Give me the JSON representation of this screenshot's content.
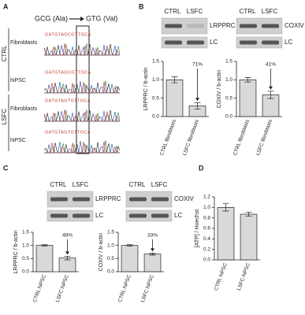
{
  "panels": {
    "A": {
      "label": "A",
      "mutation_from": "GCG (Ala)",
      "mutation_to": "GTG (Val)",
      "groups": [
        {
          "name": "CTRL",
          "rows": [
            {
              "sample": "Fibroblasts",
              "sequence": "GATGTAGCGTTGCA"
            },
            {
              "sample": "hiPSC",
              "sequence": "GATGTAGCGTTGCA"
            }
          ]
        },
        {
          "name": "LSFC",
          "rows": [
            {
              "sample": "Fibroblasts",
              "sequence": "GATGTAGTGTTGCA"
            },
            {
              "sample": "hiPSC",
              "sequence": "GATGTAGTGTTGCA"
            }
          ]
        }
      ]
    },
    "B": {
      "label": "B",
      "blots": [
        {
          "lanes": [
            "CTRL",
            "LSFC"
          ],
          "bands": [
            "LRPPRC",
            "LC"
          ]
        },
        {
          "lanes": [
            "CTRL",
            "LSFC"
          ],
          "bands": [
            "COXIV",
            "LC"
          ]
        }
      ]
    },
    "C": {
      "label": "C",
      "blots": [
        {
          "lanes": [
            "CTRL",
            "LSFC"
          ],
          "bands": [
            "LRPPRC",
            "LC"
          ]
        },
        {
          "lanes": [
            "CTRL",
            "LSFC"
          ],
          "bands": [
            "COXIV",
            "LC"
          ]
        }
      ]
    },
    "D": {
      "label": "D"
    }
  },
  "chart_data": [
    {
      "type": "bar",
      "ylabel": "LRPPRC / b-actin",
      "categories": [
        "CTRL fibroblasts",
        "LSFC fibroblasts"
      ],
      "values": [
        1.0,
        0.29
      ],
      "errors": [
        0.08,
        0.09
      ],
      "color": "#d9d9d9",
      "annotation": "71%",
      "ylim": [
        0,
        1.5
      ],
      "yticks": [
        {
          "value": 0,
          "label": "0.0"
        },
        0.5,
        {
          "value": 1,
          "label": "1.0"
        },
        1.5
      ]
    },
    {
      "type": "bar",
      "ylabel": "COXIV / b-actin",
      "categories": [
        "CTRL fibroblasts",
        "LSFC fibroblasts"
      ],
      "values": [
        1.0,
        0.59
      ],
      "errors": [
        0.06,
        0.1
      ],
      "color": "#d9d9d9",
      "annotation": "41%",
      "ylim": [
        0,
        1.5
      ],
      "yticks": [
        {
          "value": 0,
          "label": "0.0"
        },
        0.5,
        {
          "value": 1,
          "label": "1.0"
        },
        1.5
      ]
    },
    {
      "type": "bar",
      "ylabel": "LRPPRC / b-actin",
      "categories": [
        "CTRL hiPSC",
        "LSFC hiPSC"
      ],
      "values": [
        1.0,
        0.52
      ],
      "errors": [
        0.03,
        0.07
      ],
      "color": "#d9d9d9",
      "annotation": "48%",
      "ylim": [
        0,
        1.5
      ],
      "yticks": [
        {
          "value": 0,
          "label": "0.0"
        },
        0.5,
        {
          "value": 1,
          "label": "1.0"
        },
        1.5
      ]
    },
    {
      "type": "bar",
      "ylabel": "COXIV / b-actin",
      "categories": [
        "CTRL hiPSC",
        "LSFC hiPSC"
      ],
      "values": [
        1.0,
        0.67
      ],
      "errors": [
        0.03,
        0.04
      ],
      "color": "#d9d9d9",
      "annotation": "33%",
      "ylim": [
        0,
        1.5
      ],
      "yticks": [
        {
          "value": 0,
          "label": "0.0"
        },
        0.5,
        {
          "value": 1,
          "label": "1.0"
        },
        1.5
      ]
    },
    {
      "type": "bar",
      "ylabel": "[ATP] / Hoechst",
      "categories": [
        "CTRL hiPSC",
        "LSFC hiPSC"
      ],
      "values": [
        1.0,
        0.87
      ],
      "errors": [
        0.07,
        0.04
      ],
      "color": "#d9d9d9",
      "ylim": [
        0,
        1.2
      ],
      "yticks": [
        {
          "value": 0,
          "label": "0.0"
        },
        0.2,
        0.4,
        0.6,
        0.8,
        {
          "value": 1,
          "label": "1.0"
        },
        1.2
      ]
    }
  ]
}
